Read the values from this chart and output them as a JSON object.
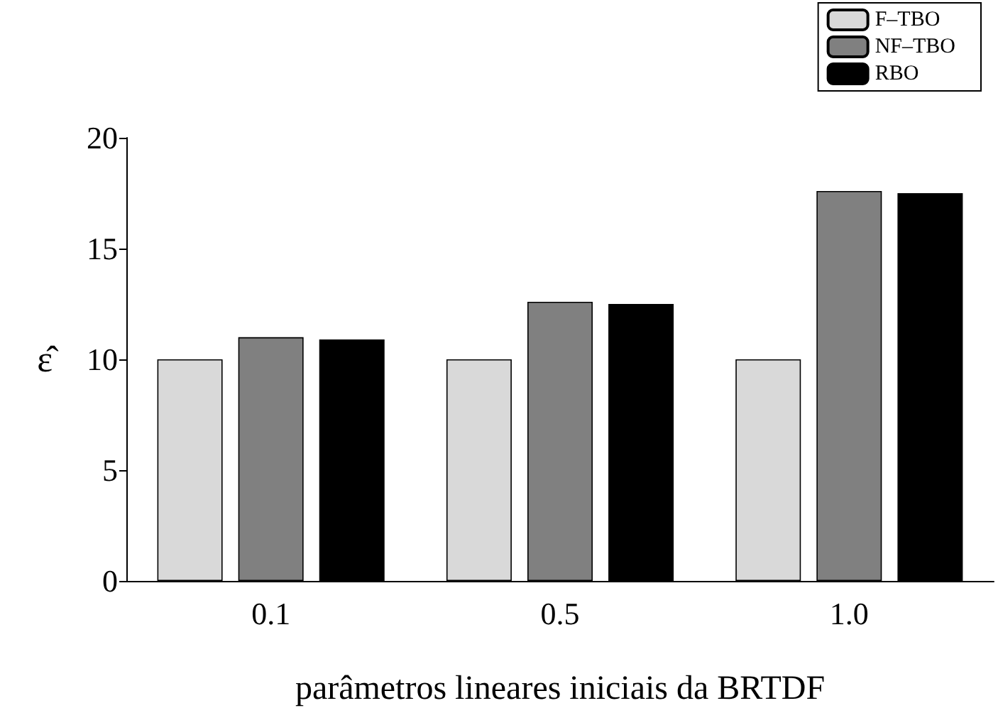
{
  "chart_data": {
    "type": "bar",
    "xlabel": "parâmetros lineares iniciais da BRTDF",
    "ylabel": "ε̂",
    "categories": [
      "0.1",
      "0.5",
      "1.0"
    ],
    "series": [
      {
        "name": "F–TBO",
        "color": "#d9d9d9",
        "values": [
          10,
          10,
          10
        ]
      },
      {
        "name": "NF–TBO",
        "color": "#808080",
        "values": [
          11.0,
          12.6,
          17.6
        ]
      },
      {
        "name": "RBO",
        "color": "#000000",
        "values": [
          10.9,
          12.5,
          17.5
        ]
      }
    ],
    "ylim": [
      0,
      20
    ],
    "yticks": [
      0,
      5,
      10,
      15,
      20
    ],
    "grid": false,
    "legend": "top right"
  }
}
